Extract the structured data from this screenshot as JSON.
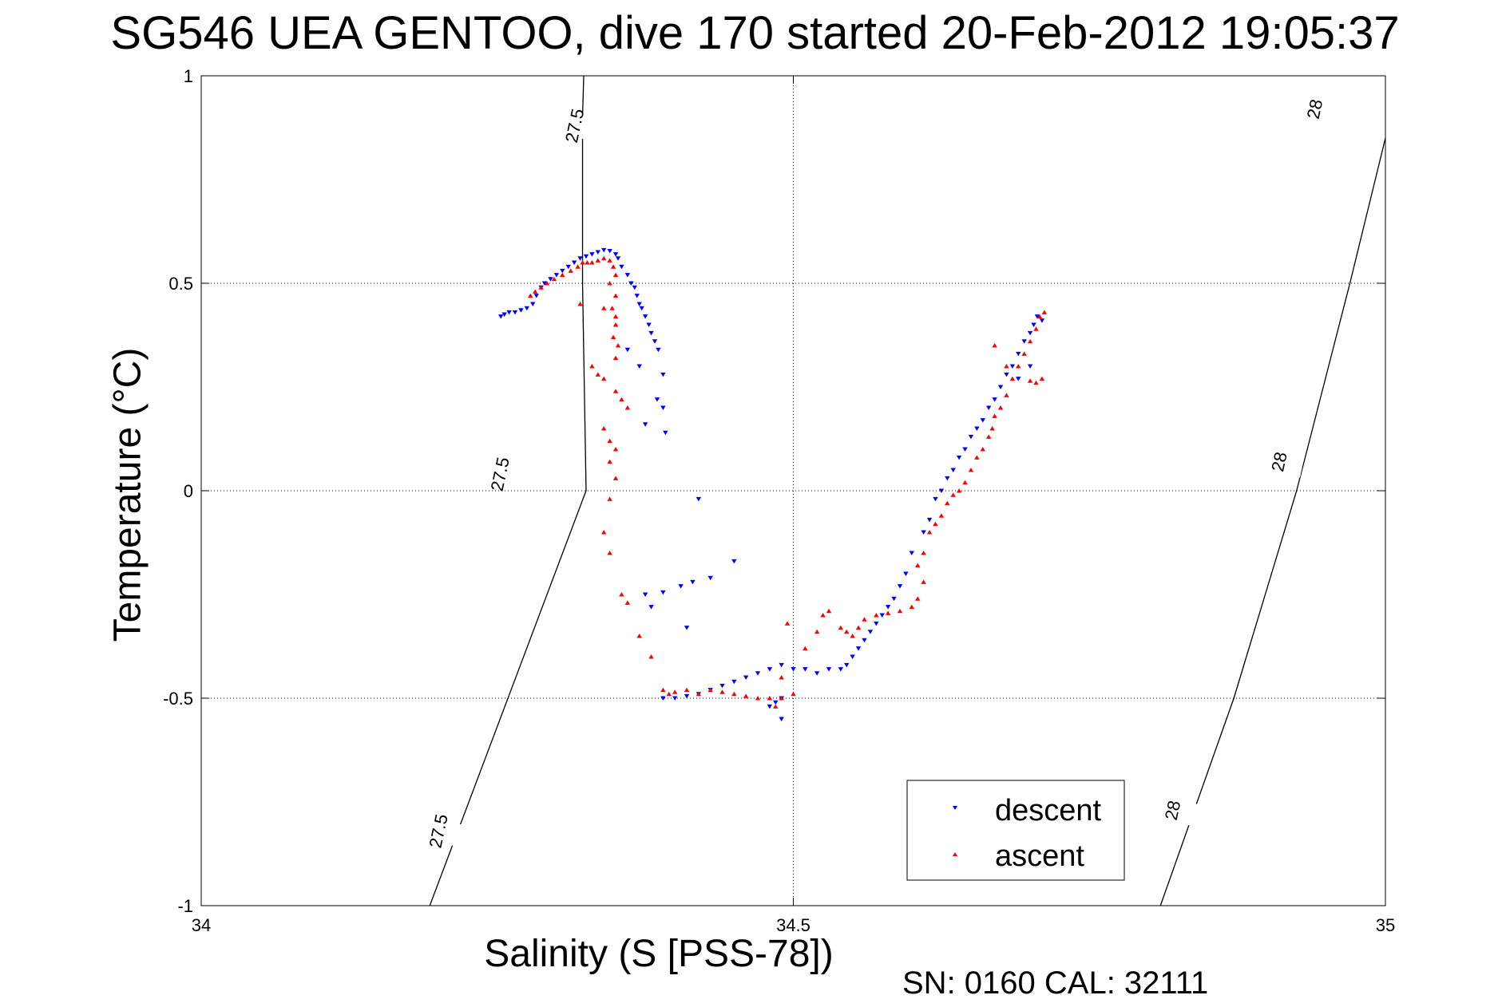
{
  "chart_data": {
    "type": "scatter",
    "title": "SG546 UEA GENTOO, dive 170 started 20-Feb-2012 19:05:37",
    "xlabel": "Salinity (S [PSS-78])",
    "ylabel": "Temperature (°C)",
    "xlim": [
      34,
      35
    ],
    "ylim": [
      -1,
      1
    ],
    "xticks": [
      "34",
      "34.5",
      "35"
    ],
    "yticks": [
      "-1",
      "-0.5",
      "0",
      "0.5",
      "1"
    ],
    "grid": true,
    "legend_position": "bottom-right",
    "footnote": "SN: 0160  CAL: 32111",
    "isopycnals": [
      {
        "label": "27.5",
        "points": [
          [
            34.193,
            -1.0
          ],
          [
            34.325,
            0.0
          ],
          [
            34.322,
            0.5
          ],
          [
            34.322,
            0.9
          ],
          [
            34.323,
            1.0
          ]
        ],
        "label_positions": [
          [
            34.2,
            -0.82
          ],
          [
            34.252,
            0.04
          ],
          [
            34.315,
            0.88
          ]
        ]
      },
      {
        "label": "28",
        "points": [
          [
            34.81,
            -1.0
          ],
          [
            34.872,
            -0.5
          ],
          [
            34.925,
            0.0
          ],
          [
            34.97,
            0.5
          ],
          [
            35.0,
            0.85
          ],
          [
            35.011,
            1.0
          ]
        ],
        "label_positions": [
          [
            34.82,
            -0.77
          ],
          [
            34.91,
            0.07
          ],
          [
            34.94,
            0.92
          ]
        ]
      }
    ],
    "series": [
      {
        "name": "descent",
        "color": "#0000ff",
        "marker": "triangle-down",
        "points": [
          [
            34.253,
            0.42
          ],
          [
            34.256,
            0.425
          ],
          [
            34.26,
            0.43
          ],
          [
            34.265,
            0.43
          ],
          [
            34.27,
            0.435
          ],
          [
            34.275,
            0.44
          ],
          [
            34.28,
            0.45
          ],
          [
            34.283,
            0.47
          ],
          [
            34.287,
            0.49
          ],
          [
            34.29,
            0.5
          ],
          [
            34.295,
            0.51
          ],
          [
            34.3,
            0.52
          ],
          [
            34.305,
            0.53
          ],
          [
            34.31,
            0.54
          ],
          [
            34.315,
            0.55
          ],
          [
            34.32,
            0.56
          ],
          [
            34.325,
            0.565
          ],
          [
            34.33,
            0.57
          ],
          [
            34.335,
            0.575
          ],
          [
            34.34,
            0.58
          ],
          [
            34.345,
            0.578
          ],
          [
            34.35,
            0.57
          ],
          [
            34.352,
            0.56
          ],
          [
            34.355,
            0.54
          ],
          [
            34.36,
            0.52
          ],
          [
            34.363,
            0.5
          ],
          [
            34.366,
            0.49
          ],
          [
            34.368,
            0.47
          ],
          [
            34.37,
            0.45
          ],
          [
            34.372,
            0.44
          ],
          [
            34.375,
            0.42
          ],
          [
            34.378,
            0.4
          ],
          [
            34.38,
            0.38
          ],
          [
            34.383,
            0.36
          ],
          [
            34.386,
            0.34
          ],
          [
            34.36,
            0.34
          ],
          [
            34.37,
            0.3
          ],
          [
            34.39,
            0.28
          ],
          [
            34.385,
            0.22
          ],
          [
            34.39,
            0.2
          ],
          [
            34.375,
            0.16
          ],
          [
            34.392,
            0.14
          ],
          [
            34.42,
            -0.02
          ],
          [
            34.45,
            -0.17
          ],
          [
            34.43,
            -0.21
          ],
          [
            34.415,
            -0.22
          ],
          [
            34.405,
            -0.23
          ],
          [
            34.39,
            -0.245
          ],
          [
            34.375,
            -0.25
          ],
          [
            34.38,
            -0.28
          ],
          [
            34.41,
            -0.33
          ],
          [
            34.39,
            -0.5
          ],
          [
            34.4,
            -0.5
          ],
          [
            34.41,
            -0.495
          ],
          [
            34.42,
            -0.49
          ],
          [
            34.43,
            -0.48
          ],
          [
            34.44,
            -0.47
          ],
          [
            34.45,
            -0.46
          ],
          [
            34.46,
            -0.45
          ],
          [
            34.47,
            -0.44
          ],
          [
            34.48,
            -0.43
          ],
          [
            34.49,
            -0.42
          ],
          [
            34.5,
            -0.43
          ],
          [
            34.51,
            -0.43
          ],
          [
            34.52,
            -0.44
          ],
          [
            34.53,
            -0.43
          ],
          [
            34.54,
            -0.43
          ],
          [
            34.545,
            -0.42
          ],
          [
            34.55,
            -0.4
          ],
          [
            34.555,
            -0.38
          ],
          [
            34.56,
            -0.36
          ],
          [
            34.565,
            -0.34
          ],
          [
            34.57,
            -0.32
          ],
          [
            34.575,
            -0.3
          ],
          [
            34.58,
            -0.28
          ],
          [
            34.585,
            -0.26
          ],
          [
            34.59,
            -0.23
          ],
          [
            34.595,
            -0.2
          ],
          [
            34.6,
            -0.15
          ],
          [
            34.61,
            -0.1
          ],
          [
            34.615,
            -0.07
          ],
          [
            34.62,
            -0.02
          ],
          [
            34.625,
            0.0
          ],
          [
            34.63,
            0.03
          ],
          [
            34.635,
            0.05
          ],
          [
            34.64,
            0.08
          ],
          [
            34.645,
            0.1
          ],
          [
            34.65,
            0.13
          ],
          [
            34.655,
            0.15
          ],
          [
            34.66,
            0.17
          ],
          [
            34.665,
            0.2
          ],
          [
            34.67,
            0.22
          ],
          [
            34.675,
            0.25
          ],
          [
            34.68,
            0.28
          ],
          [
            34.685,
            0.3
          ],
          [
            34.69,
            0.33
          ],
          [
            34.695,
            0.36
          ],
          [
            34.7,
            0.38
          ],
          [
            34.703,
            0.4
          ],
          [
            34.706,
            0.42
          ],
          [
            34.71,
            0.41
          ],
          [
            34.7,
            0.3
          ],
          [
            34.69,
            0.27
          ],
          [
            34.49,
            -0.5
          ],
          [
            34.485,
            -0.51
          ],
          [
            34.48,
            -0.52
          ],
          [
            34.49,
            -0.55
          ]
        ]
      },
      {
        "name": "ascent",
        "color": "#ff0000",
        "marker": "triangle-up",
        "points": [
          [
            34.278,
            0.47
          ],
          [
            34.282,
            0.48
          ],
          [
            34.287,
            0.49
          ],
          [
            34.292,
            0.5
          ],
          [
            34.298,
            0.51
          ],
          [
            34.305,
            0.52
          ],
          [
            34.312,
            0.53
          ],
          [
            34.318,
            0.54
          ],
          [
            34.322,
            0.55
          ],
          [
            34.326,
            0.55
          ],
          [
            34.33,
            0.55
          ],
          [
            34.335,
            0.555
          ],
          [
            34.34,
            0.56
          ],
          [
            34.345,
            0.555
          ],
          [
            34.348,
            0.54
          ],
          [
            34.35,
            0.52
          ],
          [
            34.345,
            0.5
          ],
          [
            34.35,
            0.47
          ],
          [
            34.347,
            0.44
          ],
          [
            34.35,
            0.42
          ],
          [
            34.35,
            0.4
          ],
          [
            34.348,
            0.37
          ],
          [
            34.352,
            0.35
          ],
          [
            34.35,
            0.32
          ],
          [
            34.34,
            0.44
          ],
          [
            34.32,
            0.45
          ],
          [
            34.33,
            0.3
          ],
          [
            34.335,
            0.28
          ],
          [
            34.34,
            0.27
          ],
          [
            34.35,
            0.24
          ],
          [
            34.355,
            0.22
          ],
          [
            34.36,
            0.2
          ],
          [
            34.34,
            0.15
          ],
          [
            34.345,
            0.12
          ],
          [
            34.35,
            0.1
          ],
          [
            34.345,
            0.07
          ],
          [
            34.35,
            0.03
          ],
          [
            34.345,
            -0.02
          ],
          [
            34.34,
            -0.1
          ],
          [
            34.345,
            -0.15
          ],
          [
            34.355,
            -0.25
          ],
          [
            34.36,
            -0.27
          ],
          [
            34.37,
            -0.35
          ],
          [
            34.38,
            -0.4
          ],
          [
            34.39,
            -0.48
          ],
          [
            34.395,
            -0.49
          ],
          [
            34.4,
            -0.485
          ],
          [
            34.41,
            -0.48
          ],
          [
            34.42,
            -0.49
          ],
          [
            34.43,
            -0.48
          ],
          [
            34.44,
            -0.485
          ],
          [
            34.45,
            -0.49
          ],
          [
            34.46,
            -0.495
          ],
          [
            34.47,
            -0.5
          ],
          [
            34.48,
            -0.5
          ],
          [
            34.49,
            -0.5
          ],
          [
            34.5,
            -0.49
          ],
          [
            34.49,
            -0.45
          ],
          [
            34.485,
            -0.52
          ],
          [
            34.495,
            -0.32
          ],
          [
            34.51,
            -0.38
          ],
          [
            34.52,
            -0.34
          ],
          [
            34.525,
            -0.3
          ],
          [
            34.53,
            -0.29
          ],
          [
            34.54,
            -0.33
          ],
          [
            34.545,
            -0.34
          ],
          [
            34.55,
            -0.35
          ],
          [
            34.555,
            -0.33
          ],
          [
            34.56,
            -0.31
          ],
          [
            34.57,
            -0.3
          ],
          [
            34.58,
            -0.295
          ],
          [
            34.59,
            -0.29
          ],
          [
            34.6,
            -0.28
          ],
          [
            34.605,
            -0.26
          ],
          [
            34.61,
            -0.22
          ],
          [
            34.605,
            -0.18
          ],
          [
            34.61,
            -0.15
          ],
          [
            34.615,
            -0.1
          ],
          [
            34.62,
            -0.08
          ],
          [
            34.625,
            -0.06
          ],
          [
            34.63,
            -0.03
          ],
          [
            34.635,
            -0.01
          ],
          [
            34.64,
            0.0
          ],
          [
            34.645,
            0.02
          ],
          [
            34.65,
            0.05
          ],
          [
            34.655,
            0.08
          ],
          [
            34.66,
            0.1
          ],
          [
            34.665,
            0.13
          ],
          [
            34.668,
            0.15
          ],
          [
            34.67,
            0.18
          ],
          [
            34.675,
            0.2
          ],
          [
            34.68,
            0.23
          ],
          [
            34.685,
            0.27
          ],
          [
            34.69,
            0.3
          ],
          [
            34.695,
            0.33
          ],
          [
            34.7,
            0.36
          ],
          [
            34.705,
            0.39
          ],
          [
            34.708,
            0.42
          ],
          [
            34.712,
            0.43
          ],
          [
            34.71,
            0.27
          ],
          [
            34.705,
            0.26
          ],
          [
            34.7,
            0.265
          ],
          [
            34.68,
            0.3
          ],
          [
            34.67,
            0.35
          ]
        ]
      }
    ]
  }
}
